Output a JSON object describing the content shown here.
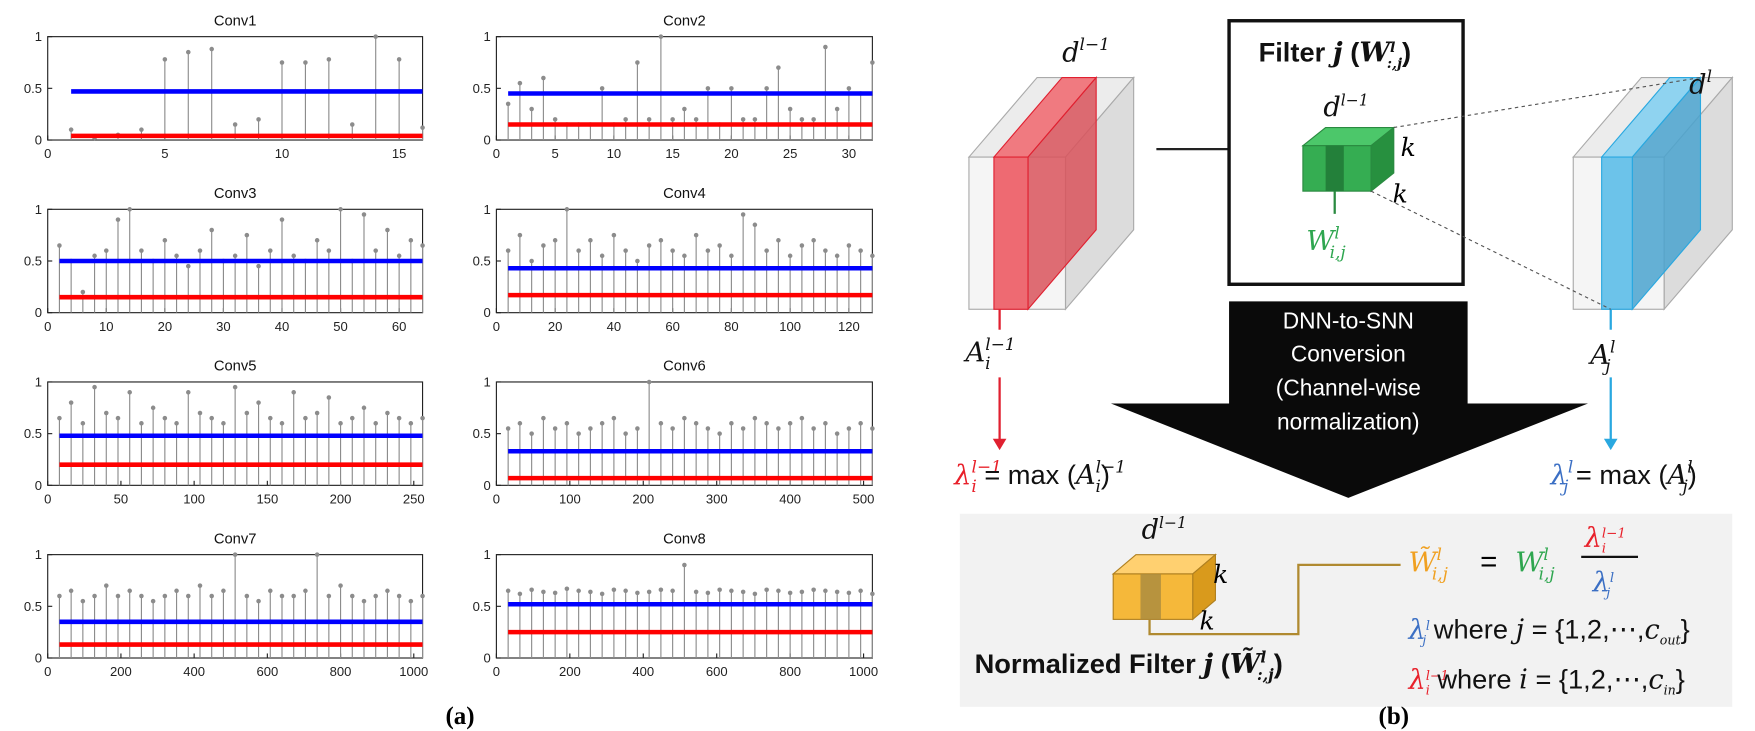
{
  "chart_data": [
    {
      "type": "stem",
      "title": "Conv1",
      "xlim": [
        0,
        16
      ],
      "ylim": [
        0,
        1
      ],
      "xticks": [
        0,
        5,
        10,
        15
      ],
      "yticks": [
        0,
        0.5,
        1
      ],
      "color": "#8c8c8c",
      "x": [
        1,
        2,
        3,
        4,
        5,
        6,
        7,
        8,
        9,
        10,
        11,
        12,
        13,
        14,
        15,
        16
      ],
      "values": [
        0.1,
        0.02,
        0.05,
        0.1,
        0.78,
        0.85,
        0.88,
        0.15,
        0.2,
        0.75,
        0.75,
        0.78,
        0.15,
        1.0,
        0.78,
        0.12
      ],
      "hlines": [
        {
          "value": 0.47,
          "color": "#0000ff"
        },
        {
          "value": 0.04,
          "color": "#ff0000"
        }
      ]
    },
    {
      "type": "stem",
      "title": "Conv2",
      "xlim": [
        0,
        32
      ],
      "ylim": [
        0,
        1
      ],
      "xticks": [
        0,
        5,
        10,
        15,
        20,
        25,
        30
      ],
      "yticks": [
        0,
        0.5,
        1
      ],
      "color": "#8c8c8c",
      "x": [
        1,
        2,
        3,
        4,
        5,
        6,
        7,
        8,
        9,
        10,
        11,
        12,
        13,
        14,
        15,
        16,
        17,
        18,
        19,
        20,
        21,
        22,
        23,
        24,
        25,
        26,
        27,
        28,
        29,
        30,
        31,
        32
      ],
      "values": [
        0.35,
        0.55,
        0.3,
        0.6,
        0.2,
        0.15,
        0.15,
        0.15,
        0.5,
        0.15,
        0.2,
        0.75,
        0.2,
        1.0,
        0.2,
        0.3,
        0.2,
        0.5,
        0.15,
        0.5,
        0.2,
        0.2,
        0.5,
        0.7,
        0.3,
        0.2,
        0.2,
        0.9,
        0.3,
        0.5,
        0.45,
        0.75
      ],
      "hlines": [
        {
          "value": 0.45,
          "color": "#0000ff"
        },
        {
          "value": 0.15,
          "color": "#ff0000"
        }
      ]
    },
    {
      "type": "stem",
      "title": "Conv3",
      "xlim": [
        0,
        64
      ],
      "ylim": [
        0,
        1
      ],
      "xticks": [
        0,
        10,
        20,
        30,
        40,
        50,
        60
      ],
      "yticks": [
        0,
        0.5,
        1
      ],
      "color": "#8c8c8c",
      "x": [
        2,
        4,
        6,
        8,
        10,
        12,
        14,
        16,
        18,
        20,
        22,
        24,
        26,
        28,
        30,
        32,
        34,
        36,
        38,
        40,
        42,
        44,
        46,
        48,
        50,
        52,
        54,
        56,
        58,
        60,
        62,
        64
      ],
      "values": [
        0.65,
        0.5,
        0.2,
        0.55,
        0.6,
        0.9,
        1.0,
        0.6,
        0.5,
        0.7,
        0.55,
        0.45,
        0.6,
        0.8,
        0.5,
        0.55,
        0.75,
        0.45,
        0.6,
        0.9,
        0.55,
        0.5,
        0.7,
        0.6,
        1.0,
        0.5,
        0.95,
        0.6,
        0.8,
        0.55,
        0.7,
        0.65
      ],
      "hlines": [
        {
          "value": 0.5,
          "color": "#0000ff"
        },
        {
          "value": 0.15,
          "color": "#ff0000"
        }
      ]
    },
    {
      "type": "stem",
      "title": "Conv4",
      "xlim": [
        0,
        128
      ],
      "ylim": [
        0,
        1
      ],
      "xticks": [
        0,
        20,
        40,
        60,
        80,
        100,
        120
      ],
      "yticks": [
        0,
        0.5,
        1
      ],
      "color": "#8c8c8c",
      "x": [
        4,
        8,
        12,
        16,
        20,
        24,
        28,
        32,
        36,
        40,
        44,
        48,
        52,
        56,
        60,
        64,
        68,
        72,
        76,
        80,
        84,
        88,
        92,
        96,
        100,
        104,
        108,
        112,
        116,
        120,
        124,
        128
      ],
      "values": [
        0.6,
        0.75,
        0.5,
        0.65,
        0.7,
        1.0,
        0.6,
        0.7,
        0.55,
        0.75,
        0.6,
        0.5,
        0.65,
        0.7,
        0.6,
        0.55,
        0.75,
        0.6,
        0.65,
        0.55,
        0.95,
        0.85,
        0.6,
        0.7,
        0.55,
        0.65,
        0.7,
        0.6,
        0.55,
        0.65,
        0.6,
        0.55
      ],
      "hlines": [
        {
          "value": 0.43,
          "color": "#0000ff"
        },
        {
          "value": 0.17,
          "color": "#ff0000"
        }
      ]
    },
    {
      "type": "stem",
      "title": "Conv5",
      "xlim": [
        0,
        256
      ],
      "ylim": [
        0,
        1
      ],
      "xticks": [
        0,
        50,
        100,
        150,
        200,
        250
      ],
      "yticks": [
        0,
        0.5,
        1
      ],
      "color": "#8c8c8c",
      "x": [
        8,
        16,
        24,
        32,
        40,
        48,
        56,
        64,
        72,
        80,
        88,
        96,
        104,
        112,
        120,
        128,
        136,
        144,
        152,
        160,
        168,
        176,
        184,
        192,
        200,
        208,
        216,
        224,
        232,
        240,
        248,
        256
      ],
      "values": [
        0.65,
        0.8,
        0.6,
        0.95,
        0.7,
        0.65,
        0.9,
        0.6,
        0.75,
        0.65,
        0.6,
        0.9,
        0.7,
        0.65,
        0.6,
        0.95,
        0.7,
        0.8,
        0.65,
        0.6,
        0.9,
        0.65,
        0.7,
        0.85,
        0.6,
        0.65,
        0.75,
        0.6,
        0.7,
        0.65,
        0.6,
        0.65
      ],
      "hlines": [
        {
          "value": 0.48,
          "color": "#0000ff"
        },
        {
          "value": 0.2,
          "color": "#ff0000"
        }
      ]
    },
    {
      "type": "stem",
      "title": "Conv6",
      "xlim": [
        0,
        512
      ],
      "ylim": [
        0,
        1
      ],
      "xticks": [
        0,
        100,
        200,
        300,
        400,
        500
      ],
      "yticks": [
        0,
        0.5,
        1
      ],
      "color": "#8c8c8c",
      "x": [
        16,
        32,
        48,
        64,
        80,
        96,
        112,
        128,
        144,
        160,
        176,
        192,
        208,
        224,
        240,
        256,
        272,
        288,
        304,
        320,
        336,
        352,
        368,
        384,
        400,
        416,
        432,
        448,
        464,
        480,
        496,
        512
      ],
      "values": [
        0.55,
        0.6,
        0.5,
        0.65,
        0.55,
        0.6,
        0.5,
        0.55,
        0.6,
        0.65,
        0.5,
        0.55,
        1.0,
        0.6,
        0.55,
        0.65,
        0.6,
        0.55,
        0.5,
        0.6,
        0.55,
        0.65,
        0.6,
        0.55,
        0.6,
        0.65,
        0.55,
        0.6,
        0.5,
        0.55,
        0.6,
        0.55
      ],
      "hlines": [
        {
          "value": 0.33,
          "color": "#0000ff"
        },
        {
          "value": 0.07,
          "color": "#ff0000"
        }
      ]
    },
    {
      "type": "stem",
      "title": "Conv7",
      "xlim": [
        0,
        1024
      ],
      "ylim": [
        0,
        1
      ],
      "xticks": [
        0,
        200,
        400,
        600,
        800,
        1000
      ],
      "yticks": [
        0,
        0.5,
        1
      ],
      "color": "#8c8c8c",
      "x": [
        32,
        64,
        96,
        128,
        160,
        192,
        224,
        256,
        288,
        320,
        352,
        384,
        416,
        448,
        480,
        512,
        544,
        576,
        608,
        640,
        672,
        704,
        736,
        768,
        800,
        832,
        864,
        896,
        928,
        960,
        992,
        1024
      ],
      "values": [
        0.6,
        0.65,
        0.55,
        0.6,
        0.7,
        0.6,
        0.65,
        0.6,
        0.55,
        0.6,
        0.65,
        0.6,
        0.7,
        0.6,
        0.65,
        1.0,
        0.6,
        0.55,
        0.65,
        0.6,
        0.6,
        0.65,
        1.0,
        0.6,
        0.7,
        0.6,
        0.55,
        0.6,
        0.65,
        0.6,
        0.55,
        0.6
      ],
      "hlines": [
        {
          "value": 0.35,
          "color": "#0000ff"
        },
        {
          "value": 0.13,
          "color": "#ff0000"
        }
      ]
    },
    {
      "type": "stem",
      "title": "Conv8",
      "xlim": [
        0,
        1024
      ],
      "ylim": [
        0,
        1
      ],
      "xticks": [
        0,
        200,
        400,
        600,
        800,
        1000
      ],
      "yticks": [
        0,
        0.5,
        1
      ],
      "color": "#8c8c8c",
      "x": [
        32,
        64,
        96,
        128,
        160,
        192,
        224,
        256,
        288,
        320,
        352,
        384,
        416,
        448,
        480,
        512,
        544,
        576,
        608,
        640,
        672,
        704,
        736,
        768,
        800,
        832,
        864,
        896,
        928,
        960,
        992,
        1024
      ],
      "values": [
        0.65,
        0.62,
        0.66,
        0.64,
        0.63,
        0.67,
        0.65,
        0.64,
        0.62,
        0.66,
        0.65,
        0.63,
        0.64,
        0.66,
        0.65,
        0.9,
        0.64,
        0.63,
        0.66,
        0.65,
        0.64,
        0.62,
        0.66,
        0.65,
        0.63,
        0.64,
        0.66,
        0.65,
        0.64,
        0.63,
        0.65,
        0.62
      ],
      "hlines": [
        {
          "value": 0.52,
          "color": "#0000ff"
        },
        {
          "value": 0.25,
          "color": "#ff0000"
        }
      ]
    }
  ],
  "panel_labels": [
    "(a)",
    "(b)"
  ],
  "diagram": {
    "d_in_left": {
      "base": "d",
      "sup": "l−1"
    },
    "filter_title": [
      {
        "pre": "Filter ",
        "base": "j"
      },
      {
        "pre": " (",
        "base": "W",
        "sup": "l",
        "sub": ":,j",
        "post": ")"
      }
    ],
    "d_in_filter": {
      "base": "d",
      "sup": "l−1"
    },
    "k_filter": [
      "k",
      "k"
    ],
    "w_ij": {
      "base": "W",
      "sup": "l",
      "sub": "i,j"
    },
    "d_out": {
      "base": "d",
      "sup": "l"
    },
    "a_in": {
      "base": "A",
      "sup": "l−1",
      "sub": "i"
    },
    "a_out": {
      "base": "A",
      "sup": "l",
      "sub": "j"
    },
    "conversion_lines": [
      "DNN-to-SNN",
      "Conversion",
      "(Channel-wise",
      "normalization)"
    ],
    "lambda_in_def": [
      {
        "base": "λ",
        "sup": "l−1",
        "sub": "i"
      },
      {
        "pre": " = max (",
        "base": "A",
        "sup": "l−1",
        "sub": "i",
        "post": ")"
      }
    ],
    "lambda_out_def": [
      {
        "base": "λ",
        "sup": "l",
        "sub": "j"
      },
      {
        "pre": " = max (",
        "base": "A",
        "sup": "l",
        "sub": "j",
        "post": ")"
      }
    ],
    "d_in_norm": {
      "base": "d",
      "sup": "l−1"
    },
    "k_norm": [
      "k",
      "k"
    ],
    "eq_lhs": {
      "base": "W̃",
      "sup": "l",
      "sub": "i,j"
    },
    "eq_op": "=",
    "eq_rhs": {
      "base": "W",
      "sup": "l",
      "sub": "i,j"
    },
    "eq_num": {
      "base": "λ",
      "sup": "l−1",
      "sub": "i"
    },
    "eq_den": {
      "base": "λ",
      "sup": "l",
      "sub": "j"
    },
    "where_j": [
      {
        "base": "λ",
        "sup": "l",
        "sub": "j"
      },
      {
        "pre": "  where ",
        "base": "j"
      },
      {
        "pre": " = {1,2,⋯,",
        "base": "c",
        "sub": "out",
        "post": "}"
      }
    ],
    "where_i": [
      {
        "base": "λ",
        "sup": "l−1",
        "sub": "i"
      },
      {
        "pre": "  where ",
        "base": "i"
      },
      {
        "pre": " = {1,2,⋯,",
        "base": "c",
        "sub": "in",
        "post": "}"
      }
    ],
    "normalized_title": [
      {
        "pre": "Normalized Filter ",
        "base": "j"
      },
      {
        "pre": " (",
        "base": "W̃",
        "sup": "l",
        "sub": ":,j",
        "post": ")"
      }
    ]
  }
}
